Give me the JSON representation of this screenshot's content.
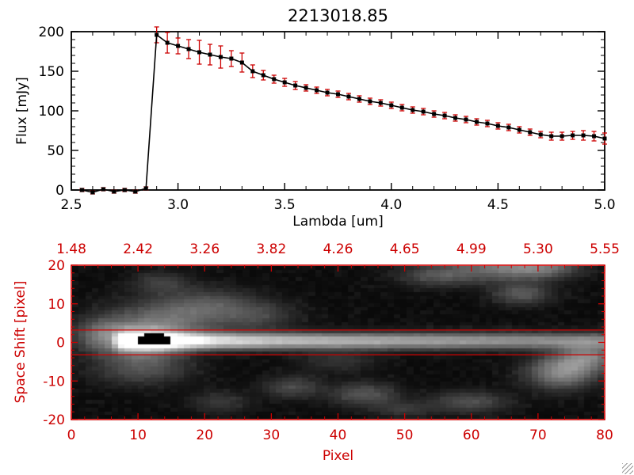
{
  "colors": {
    "accent": "#cc0000",
    "foreground": "#000000",
    "background": "#ffffff"
  },
  "top_chart": {
    "title": "2213018.85",
    "xlabel": "Lambda [um]",
    "ylabel": "Flux [mJy]",
    "xticks": [
      2.5,
      3.0,
      3.5,
      4.0,
      4.5,
      5.0
    ],
    "xtick_labels": [
      "2.5",
      "3.0",
      "3.5",
      "4.0",
      "4.5",
      "5.0"
    ],
    "yticks": [
      0,
      50,
      100,
      150,
      200
    ],
    "ytick_labels": [
      "0",
      "50",
      "100",
      "150",
      "200"
    ]
  },
  "bottom_chart": {
    "xlabel": "Pixel",
    "ylabel": "Space Shift [pixel]",
    "xticks": [
      0,
      10,
      20,
      30,
      40,
      50,
      60,
      70,
      80
    ],
    "xtick_labels": [
      "0",
      "10",
      "20",
      "30",
      "40",
      "50",
      "60",
      "70",
      "80"
    ],
    "yticks": [
      20,
      10,
      0,
      -10,
      -20
    ],
    "ytick_labels": [
      "20",
      "10",
      "0",
      "-10",
      "-20"
    ],
    "top_axis_labels": [
      "1.48",
      "2.42",
      "3.26",
      "3.82",
      "4.26",
      "4.65",
      "4.99",
      "5.30",
      "5.55"
    ]
  },
  "chart_data": [
    {
      "type": "line",
      "title": "2213018.85",
      "xlabel": "Lambda [um]",
      "ylabel": "Flux [mJy]",
      "xlim": [
        2.5,
        5.0
      ],
      "ylim": [
        0,
        200
      ],
      "marker": "filled-square",
      "line_color": "#000000",
      "errorbar_color": "#cc0000",
      "x": [
        2.55,
        2.6,
        2.65,
        2.7,
        2.75,
        2.8,
        2.85,
        2.9,
        2.95,
        3.0,
        3.05,
        3.1,
        3.15,
        3.2,
        3.25,
        3.3,
        3.35,
        3.4,
        3.45,
        3.5,
        3.55,
        3.6,
        3.65,
        3.7,
        3.75,
        3.8,
        3.85,
        3.9,
        3.95,
        4.0,
        4.05,
        4.1,
        4.15,
        4.2,
        4.25,
        4.3,
        4.35,
        4.4,
        4.45,
        4.5,
        4.55,
        4.6,
        4.65,
        4.7,
        4.75,
        4.8,
        4.85,
        4.9,
        4.95,
        5.0
      ],
      "flux_mJy": [
        0,
        -3,
        1,
        -2,
        0,
        -2,
        2,
        196,
        186,
        182,
        178,
        174,
        171,
        168,
        166,
        161,
        150,
        145,
        140,
        136,
        132,
        129,
        126,
        123,
        121,
        118,
        115,
        112,
        110,
        107,
        104,
        101,
        99,
        96,
        94,
        91,
        89,
        86,
        84,
        81,
        79,
        76,
        73,
        70,
        68,
        68,
        69,
        69,
        68,
        65
      ],
      "flux_err_mJy": [
        2,
        2,
        2,
        2,
        2,
        2,
        2,
        10,
        13,
        10,
        12,
        15,
        13,
        14,
        10,
        12,
        8,
        6,
        5,
        5,
        5,
        4,
        4,
        4,
        4,
        4,
        4,
        4,
        4,
        4,
        4,
        4,
        4,
        4,
        4,
        4,
        4,
        4,
        4,
        4,
        4,
        4,
        4,
        4,
        5,
        5,
        5,
        6,
        6,
        7
      ]
    },
    {
      "type": "heatmap",
      "xlabel": "Pixel",
      "ylabel": "Space Shift [pixel]",
      "xlim": [
        0,
        80
      ],
      "ylim": [
        -20,
        20
      ],
      "colormap": "grayscale",
      "top_axis_wavelengths": [
        "1.48",
        "2.42",
        "3.26",
        "3.82",
        "4.26",
        "4.65",
        "4.99",
        "5.30",
        "5.55"
      ],
      "aperture_lines_y": [
        3.2,
        -3.2
      ],
      "noise_amp": 0.05,
      "trace": {
        "y_center": 0.4,
        "sigma_y": 1.5,
        "amp_keypoints": [
          [
            0,
            0
          ],
          [
            5.5,
            0
          ],
          [
            6.5,
            0.55
          ],
          [
            8,
            0.95
          ],
          [
            10,
            1.0
          ],
          [
            16,
            0.95
          ],
          [
            22,
            0.8
          ],
          [
            30,
            0.7
          ],
          [
            45,
            0.6
          ],
          [
            60,
            0.52
          ],
          [
            72,
            0.46
          ],
          [
            80,
            0.42
          ]
        ],
        "halo": {
          "x": 10.5,
          "y": 0.4,
          "sigma_x": 4.0,
          "sigma_y": 3.2,
          "amp": 0.5
        }
      },
      "saturated_core": {
        "x": 12.0,
        "y": 0.8,
        "rx": 2.8,
        "ry": 1.4
      },
      "blobs": [
        {
          "x": 14,
          "y": 6,
          "sx": 6,
          "sy": 4,
          "amp": 0.28
        },
        {
          "x": 21,
          "y": 10,
          "sx": 5,
          "sy": 3,
          "amp": 0.2
        },
        {
          "x": 28,
          "y": 7,
          "sx": 4,
          "sy": 2.5,
          "amp": 0.16
        },
        {
          "x": 10,
          "y": -7,
          "sx": 5,
          "sy": 3,
          "amp": 0.22
        },
        {
          "x": 4,
          "y": 2,
          "sx": 3,
          "sy": 3,
          "amp": 0.3
        },
        {
          "x": 33,
          "y": -12,
          "sx": 3,
          "sy": 2,
          "amp": 0.2
        },
        {
          "x": 44,
          "y": -14,
          "sx": 3.5,
          "sy": 2.2,
          "amp": 0.24
        },
        {
          "x": 40,
          "y": -5,
          "sx": 4,
          "sy": 2,
          "amp": 0.12
        },
        {
          "x": 55,
          "y": 18,
          "sx": 4,
          "sy": 2,
          "amp": 0.22
        },
        {
          "x": 64,
          "y": 20,
          "sx": 5,
          "sy": 2.5,
          "amp": 0.3
        },
        {
          "x": 71,
          "y": 20,
          "sx": 4,
          "sy": 2,
          "amp": 0.32
        },
        {
          "x": 68,
          "y": 13,
          "sx": 3,
          "sy": 2,
          "amp": 0.26
        },
        {
          "x": 74,
          "y": -8,
          "sx": 3.5,
          "sy": 3,
          "amp": 0.45
        },
        {
          "x": 78,
          "y": -4,
          "sx": 3,
          "sy": 2.5,
          "amp": 0.38
        },
        {
          "x": 60,
          "y": -16,
          "sx": 4,
          "sy": 2,
          "amp": 0.22
        },
        {
          "x": 50,
          "y": -18,
          "sx": 3,
          "sy": 1.5,
          "amp": 0.14
        },
        {
          "x": 22,
          "y": -16,
          "sx": 3,
          "sy": 2,
          "amp": 0.14
        },
        {
          "x": 13,
          "y": 16,
          "sx": 3,
          "sy": 2,
          "amp": 0.16
        }
      ]
    }
  ]
}
